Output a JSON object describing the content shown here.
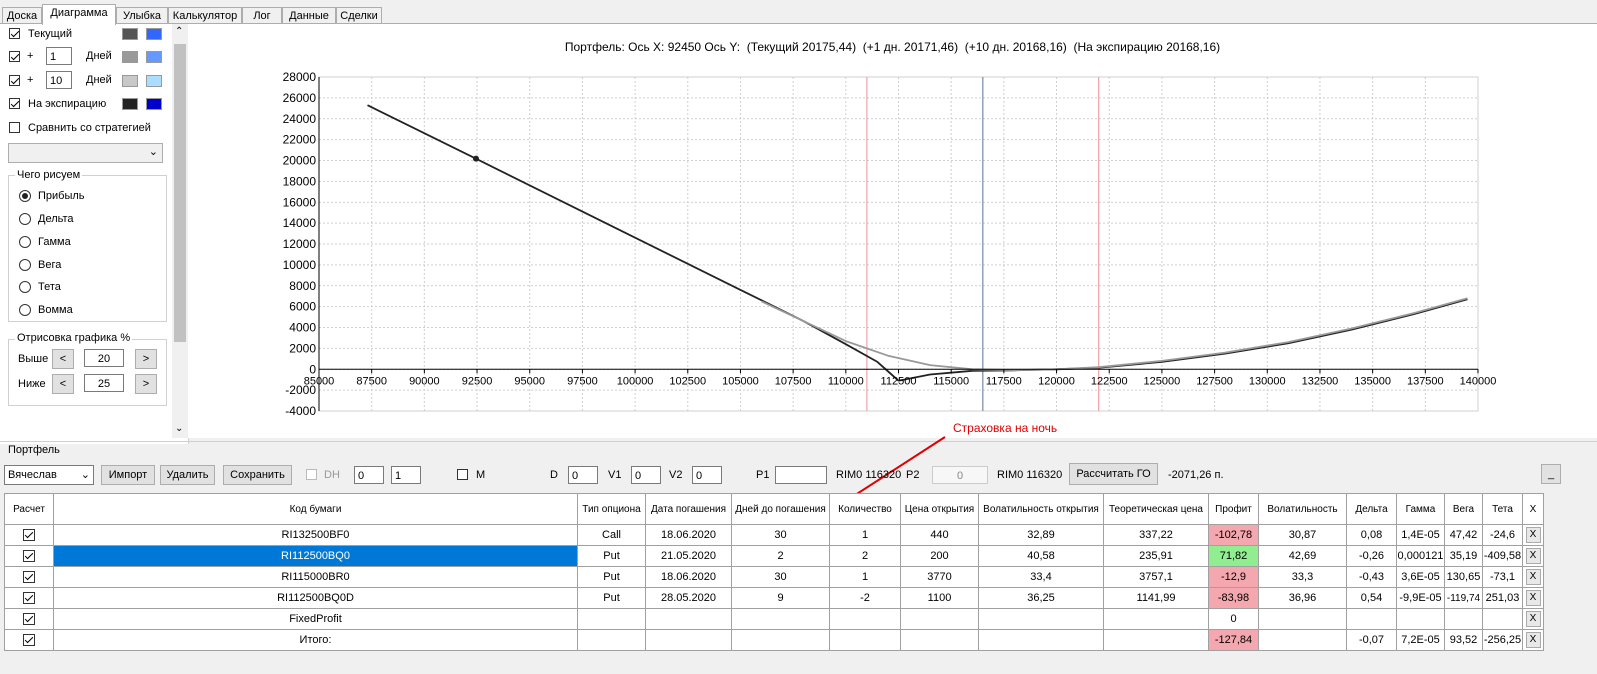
{
  "tabs": [
    "Доска",
    "Диаграмма",
    "Улыбка",
    "Калькулятор",
    "Лог",
    "Данные",
    "Сделки"
  ],
  "left": {
    "current_label": "Текущий",
    "plus_sign": "+",
    "days1": "1",
    "days10": "10",
    "days_label": "Дней",
    "expiry_label": "На экспирацию",
    "compare_label": "Сравнить со стратегией",
    "group_title": "Чего рисуем",
    "radios": [
      "Прибыль",
      "Дельта",
      "Гамма",
      "Вега",
      "Тета",
      "Вомма"
    ],
    "range_title": "Отрисовка графика %",
    "above_label": "Выше",
    "below_label": "Ниже",
    "above_val": "20",
    "below_val": "25",
    "lt": "<",
    "gt": ">",
    "colors": {
      "current": [
        "#555555",
        "#3366ff"
      ],
      "day1": [
        "#999999",
        "#6699ff"
      ],
      "day10": [
        "#c8c8c8",
        "#aaddff"
      ],
      "expiry": [
        "#222222",
        "#0000cc"
      ]
    }
  },
  "chart_header": "Портфель: Ось X: 92450 Ось Y:  (Текущий 20175,44)  (+1 дн. 20171,46)  (+10 дн. 20168,16)  (На экспирацию 20168,16)",
  "chart_data": {
    "type": "line",
    "xlim": [
      85000,
      140000
    ],
    "ylim": [
      -4000,
      28000
    ],
    "x_ticks": [
      "85000",
      "87500",
      "90000",
      "92500",
      "95000",
      "97500",
      "100000",
      "102500",
      "105000",
      "107500",
      "110000",
      "112500",
      "115000",
      "117500",
      "120000",
      "122500",
      "125000",
      "127500",
      "130000",
      "132500",
      "135000",
      "137500",
      "140000"
    ],
    "y_ticks": [
      "28000",
      "26000",
      "24000",
      "22000",
      "20000",
      "18000",
      "16000",
      "14000",
      "12000",
      "10000",
      "8000",
      "6000",
      "4000",
      "2000",
      "0",
      "-2000",
      "-4000"
    ],
    "vlines": {
      "red": [
        111000,
        122000
      ],
      "blue": [
        116500
      ]
    },
    "marker": [
      92450,
      20175
    ],
    "series": [
      {
        "color": "#222222",
        "points": [
          [
            87300,
            25300
          ],
          [
            92450,
            20175
          ],
          [
            100000,
            12600
          ],
          [
            105000,
            7600
          ],
          [
            108000,
            4600
          ],
          [
            110000,
            2400
          ],
          [
            111500,
            700
          ],
          [
            112500,
            -1100
          ]
        ]
      },
      {
        "color": "#222222",
        "points": [
          [
            112500,
            -1100
          ],
          [
            114000,
            -500
          ],
          [
            116000,
            -150
          ],
          [
            118000,
            -100
          ],
          [
            120000,
            0
          ],
          [
            122000,
            150
          ],
          [
            125000,
            700
          ],
          [
            128000,
            1500
          ],
          [
            131000,
            2500
          ],
          [
            134000,
            3800
          ],
          [
            137000,
            5300
          ],
          [
            139500,
            6700
          ]
        ]
      },
      {
        "color": "#999999",
        "points": [
          [
            106000,
            6500
          ],
          [
            108000,
            4600
          ],
          [
            110000,
            2700
          ],
          [
            112000,
            1300
          ],
          [
            114000,
            400
          ],
          [
            116000,
            0
          ],
          [
            118000,
            -80
          ],
          [
            120000,
            0
          ],
          [
            122000,
            200
          ],
          [
            125000,
            800
          ],
          [
            128000,
            1600
          ],
          [
            131000,
            2600
          ],
          [
            134000,
            3900
          ],
          [
            137000,
            5400
          ],
          [
            139500,
            6800
          ]
        ]
      }
    ]
  },
  "annotation": "Страховка на ночь",
  "portfolio": {
    "title": "Портфель",
    "user": "Вячеслав",
    "import": "Импорт",
    "delete": "Удалить",
    "save": "Сохранить",
    "dh": "DH",
    "dh_v1": "0",
    "dh_v2": "1",
    "m": "M",
    "d_label": "D",
    "d_val": "0",
    "v1_label": "V1",
    "v1_val": "0",
    "v2_label": "V2",
    "v2_val": "0",
    "p1_label": "P1",
    "rim1": "RIM0 116320",
    "p2_label": "P2",
    "p2_val": "0",
    "rim2": "RIM0 116320",
    "calc_go": "Рассчитать ГО",
    "go_value": "-2071,26 п.",
    "minimize": "_"
  },
  "table": {
    "headers": [
      "Расчет",
      "Код бумаги",
      "Тип опциона",
      "Дата погашения",
      "Дней до погашения",
      "Количество",
      "Цена открытия",
      "Волатильность открытия",
      "Теоретическая цена",
      "Профит",
      "Волатильность",
      "Дельта",
      "Гамма",
      "Вега",
      "Тета",
      "X"
    ],
    "rows": [
      [
        "RI132500BF0",
        "Call",
        "18.06.2020",
        "30",
        "1",
        "440",
        "32,89",
        "337,22",
        "-102,78",
        "30,87",
        "0,08",
        "1,4E-05",
        "47,42",
        "-24,6"
      ],
      [
        "RI112500BQ0",
        "Put",
        "21.05.2020",
        "2",
        "2",
        "200",
        "40,58",
        "235,91",
        "71,82",
        "42,69",
        "-0,26",
        "0,000121",
        "35,19",
        "-409,58"
      ],
      [
        "RI115000BR0",
        "Put",
        "18.06.2020",
        "30",
        "1",
        "3770",
        "33,4",
        "3757,1",
        "-12,9",
        "33,3",
        "-0,43",
        "3,6E-05",
        "130,65",
        "-73,1"
      ],
      [
        "RI112500BQ0D",
        "Put",
        "28.05.2020",
        "9",
        "-2",
        "1100",
        "36,25",
        "1141,99",
        "-83,98",
        "36,96",
        "0,54",
        "-9,9E-05",
        "-119,74",
        "251,03"
      ],
      [
        "FixedProfit",
        "",
        "",
        "",
        "",
        "",
        "",
        "",
        "0",
        "",
        "",
        "",
        "",
        ""
      ],
      [
        "Итого:",
        "",
        "",
        "",
        "",
        "",
        "",
        "",
        "-127,84",
        "",
        "-0,07",
        "7,2E-05",
        "93,52",
        "-256,25"
      ]
    ],
    "x": "X"
  }
}
